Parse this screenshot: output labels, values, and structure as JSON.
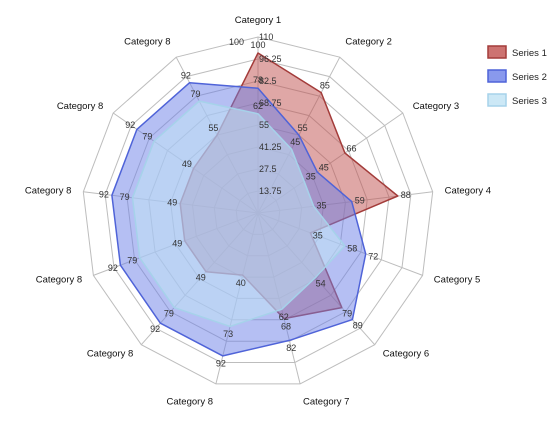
{
  "chart_data": {
    "type": "radar",
    "categories": [
      "Category 1",
      "Category 2",
      "Category 3",
      "Category 4",
      "Category 5",
      "Category 6",
      "Category 7",
      "Category 8",
      "Category 8",
      "Category 8",
      "Category 8",
      "Category 8",
      "Category 8"
    ],
    "r_ticks": [
      13.75,
      27.5,
      41.25,
      55,
      68.75,
      82.5,
      96.25,
      110
    ],
    "r_max": 110,
    "extra_tick_label": "100",
    "series": [
      {
        "name": "Series 1",
        "values": [
          100,
          85,
          66,
          88,
          35,
          79,
          68,
          40,
          49,
          49,
          49,
          49,
          55
        ],
        "fill": "#c0504d",
        "stroke": "#a33c3a",
        "fill_opacity": 0.5
      },
      {
        "name": "Series 2",
        "values": [
          78,
          55,
          45,
          59,
          72,
          89,
          82,
          92,
          92,
          92,
          92,
          92,
          92
        ],
        "fill": "#6b7fe8",
        "stroke": "#4f63d8",
        "fill_opacity": 0.5
      },
      {
        "name": "Series 3",
        "values": [
          62,
          45,
          35,
          35,
          58,
          54,
          62,
          73,
          79,
          79,
          79,
          79,
          79
        ],
        "fill": "#bfe2f4",
        "stroke": "#a6d2ea",
        "fill_opacity": 0.55
      }
    ],
    "legend_position": "top-right",
    "grid": true
  }
}
